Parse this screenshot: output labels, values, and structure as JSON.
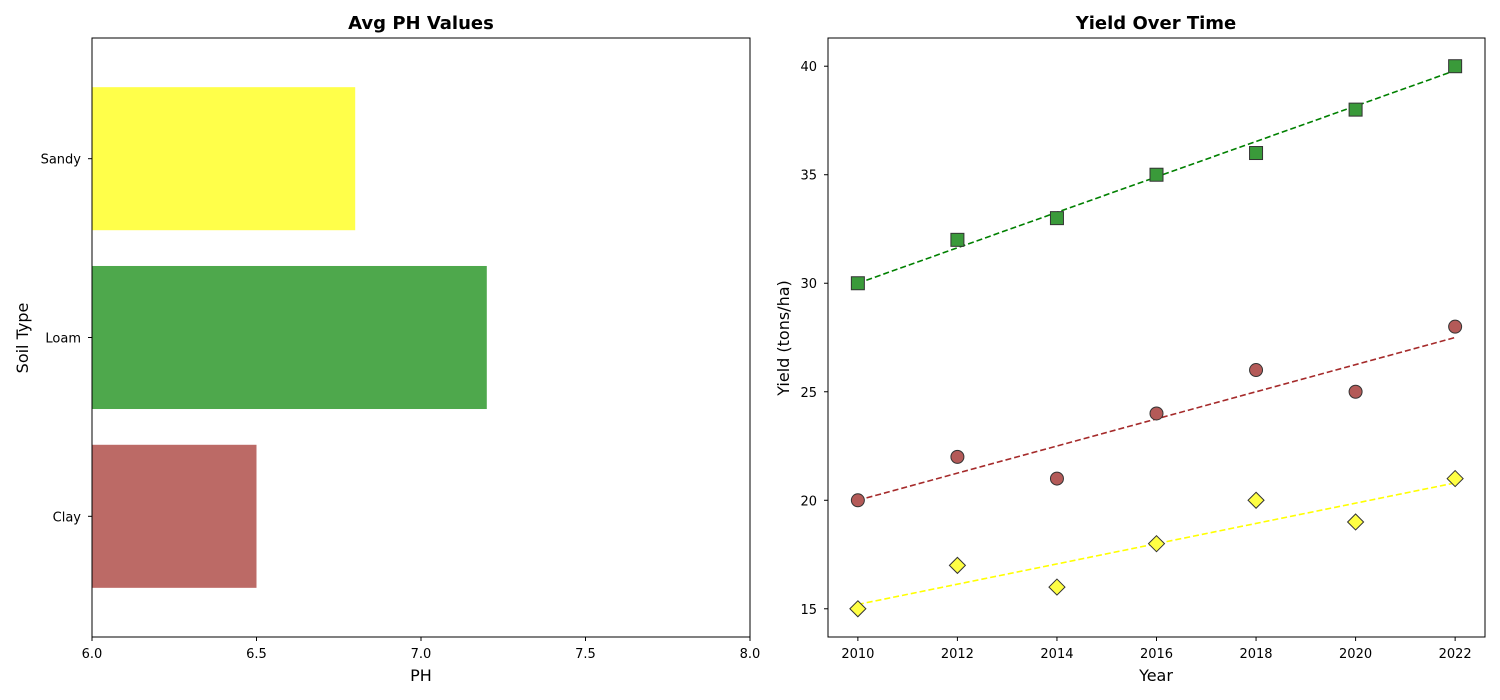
{
  "chart_data": [
    {
      "type": "bar",
      "orientation": "horizontal",
      "title": "Avg PH Values",
      "xlabel": "PH",
      "ylabel": "Soil Type",
      "categories": [
        "Clay",
        "Loam",
        "Sandy"
      ],
      "values": [
        6.5,
        7.2,
        6.8
      ],
      "colors": [
        "#bc6a66",
        "#4ea84c",
        "#ffff4a"
      ],
      "xlim": [
        6.0,
        8.0
      ],
      "xticks": [
        "6.0",
        "6.5",
        "7.0",
        "7.5",
        "8.0"
      ],
      "grid": false
    },
    {
      "type": "scatter",
      "title": "Yield Over Time",
      "xlabel": "Year",
      "ylabel": "Yield (tons/ha)",
      "x": [
        2010,
        2012,
        2014,
        2016,
        2018,
        2020,
        2022
      ],
      "xlim": [
        2009.4,
        2022.6
      ],
      "ylim": [
        13.7,
        41.3
      ],
      "xticks": [
        "2010",
        "2012",
        "2014",
        "2016",
        "2018",
        "2020",
        "2022"
      ],
      "yticks": [
        "15",
        "20",
        "25",
        "30",
        "35",
        "40"
      ],
      "grid": false,
      "series": [
        {
          "values": [
            30,
            32,
            33,
            35,
            36,
            38,
            40
          ],
          "marker": "square",
          "color": "#3a9a3a",
          "trend": [
            30.0,
            39.8
          ],
          "trend_color": "#008000"
        },
        {
          "values": [
            20,
            22,
            21,
            24,
            26,
            25,
            28
          ],
          "marker": "circle",
          "color": "#b45a58",
          "trend": [
            20.0,
            27.5
          ],
          "trend_color": "#a52a2a"
        },
        {
          "values": [
            15,
            17,
            16,
            18,
            20,
            19,
            21
          ],
          "marker": "diamond",
          "color": "#ffff44",
          "trend": [
            15.2,
            20.8
          ],
          "trend_color": "#ffff00"
        }
      ]
    }
  ]
}
